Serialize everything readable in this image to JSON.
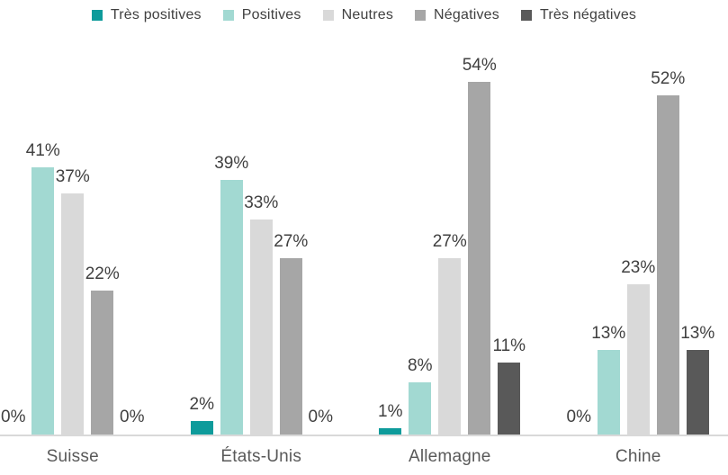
{
  "chart_data": {
    "type": "bar",
    "title": "",
    "xlabel": "",
    "ylabel": "",
    "value_format": "percent",
    "legend_position": "top",
    "grid": false,
    "ylim": [
      0,
      60
    ],
    "categories": [
      "Suisse",
      "États-Unis",
      "Allemagne",
      "Chine"
    ],
    "series": [
      {
        "name": "Très positives",
        "color": "#0e9b9b",
        "values": [
          0,
          2,
          1,
          0
        ],
        "labels": [
          "0%",
          "2%",
          "1%",
          "0%"
        ]
      },
      {
        "name": "Positives",
        "color": "#a2d9d2",
        "values": [
          41,
          39,
          8,
          13
        ],
        "labels": [
          "41%",
          "39%",
          "8%",
          "13%"
        ]
      },
      {
        "name": "Neutres",
        "color": "#d9d9d9",
        "values": [
          37,
          33,
          27,
          23
        ],
        "labels": [
          "37%",
          "33%",
          "27%",
          "23%"
        ]
      },
      {
        "name": "Négatives",
        "color": "#a6a6a6",
        "values": [
          22,
          27,
          54,
          52
        ],
        "labels": [
          "22%",
          "27%",
          "54%",
          "52%"
        ]
      },
      {
        "name": "Très négatives",
        "color": "#595959",
        "values": [
          0,
          0,
          11,
          13
        ],
        "labels": [
          "0%",
          "0%",
          "11%",
          "13%"
        ]
      }
    ]
  },
  "colors": {
    "background": "#ffffff",
    "axis_line": "#d9d9d9",
    "value_label_text": "#404040",
    "category_label_text": "#595959",
    "legend_text": "#404040"
  }
}
